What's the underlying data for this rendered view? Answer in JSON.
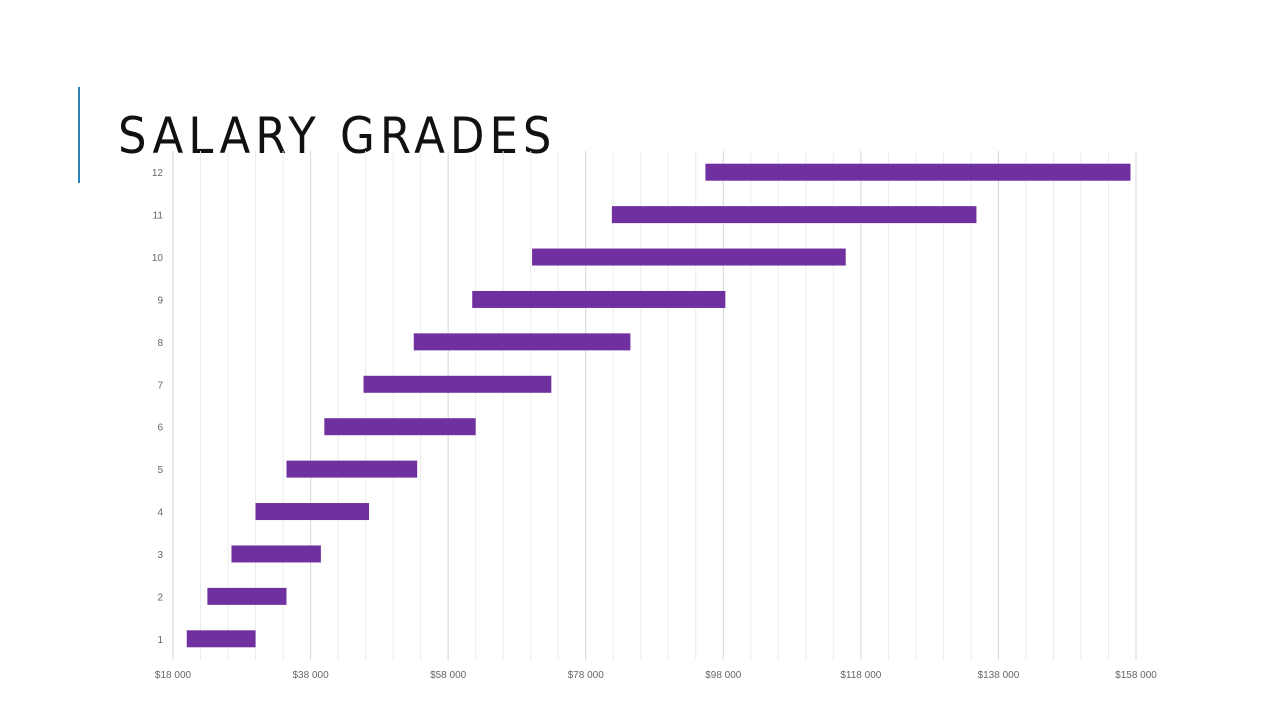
{
  "slide": {
    "title": "SALARY GRADES",
    "accent_color": "#2E83B5"
  },
  "chart_data": {
    "type": "bar",
    "orientation": "horizontal",
    "title": "",
    "xlabel": "",
    "ylabel": "",
    "categories": [
      "1",
      "2",
      "3",
      "4",
      "5",
      "6",
      "7",
      "8",
      "9",
      "10",
      "11",
      "12"
    ],
    "series": [
      {
        "ranges": [
          [
            20000,
            30000
          ],
          [
            23000,
            34500
          ],
          [
            26500,
            39500
          ],
          [
            30000,
            46500
          ],
          [
            34500,
            53500
          ],
          [
            40000,
            62000
          ],
          [
            45700,
            73000
          ],
          [
            53000,
            84500
          ],
          [
            61500,
            98300
          ],
          [
            70200,
            115800
          ],
          [
            81800,
            134800
          ],
          [
            95400,
            157200
          ]
        ],
        "color": "#7030A0"
      }
    ],
    "xlim": [
      18000,
      158000
    ],
    "xticks": [
      18000,
      38000,
      58000,
      78000,
      98000,
      118000,
      138000,
      158000
    ],
    "xtick_labels": [
      "$18 000",
      "$38 000",
      "$58 000",
      "$78 000",
      "$98 000",
      "$118 000",
      "$138 000",
      "$158 000"
    ],
    "grid": true,
    "minor_grid_step": 4000,
    "legend": "none"
  }
}
